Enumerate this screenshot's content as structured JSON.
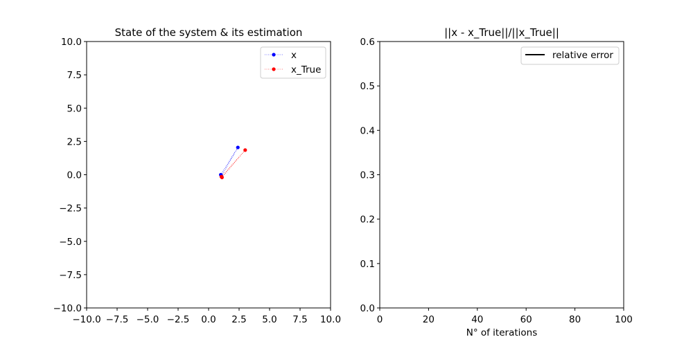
{
  "chart_data": [
    {
      "type": "line",
      "title": "State of the system & its estimation",
      "xlabel": "",
      "ylabel": "",
      "xlim": [
        -10,
        10
      ],
      "ylim": [
        -10,
        10
      ],
      "xticks": [
        -10,
        -7.5,
        -5,
        -2.5,
        0,
        2.5,
        5,
        7.5,
        10
      ],
      "yticks": [
        -10,
        -7.5,
        -5,
        -2.5,
        0,
        2.5,
        5,
        7.5,
        10
      ],
      "xtick_labels": [
        "−10.0",
        "−7.5",
        "−5.0",
        "−2.5",
        "0.0",
        "2.5",
        "5.0",
        "7.5",
        "10.0"
      ],
      "ytick_labels": [
        "−10.0",
        "−7.5",
        "−5.0",
        "−2.5",
        "0.0",
        "2.5",
        "5.0",
        "7.5",
        "10.0"
      ],
      "grid": false,
      "legend_position": "top-right",
      "series": [
        {
          "name": "x",
          "color": "#0000ff",
          "linestyle": "dotted",
          "marker": "circle",
          "points": [
            [
              1.0,
              0.0
            ],
            [
              2.4,
              2.05
            ],
            [
              1.05,
              -0.1
            ]
          ]
        },
        {
          "name": "x_True",
          "color": "#ff0000",
          "linestyle": "dotted",
          "marker": "circle",
          "points": [
            [
              1.05,
              -0.15
            ],
            [
              3.0,
              1.85
            ],
            [
              1.1,
              -0.2
            ]
          ]
        }
      ]
    },
    {
      "type": "line",
      "title": "||x - x_True||/||x_True||",
      "xlabel": "N° of iterations",
      "ylabel": "",
      "xlim": [
        0,
        100
      ],
      "ylim": [
        0,
        0.6
      ],
      "xticks": [
        0,
        20,
        40,
        60,
        80,
        100
      ],
      "yticks": [
        0,
        0.1,
        0.2,
        0.3,
        0.4,
        0.5,
        0.6
      ],
      "xtick_labels": [
        "0",
        "20",
        "40",
        "60",
        "80",
        "100"
      ],
      "ytick_labels": [
        "0.0",
        "0.1",
        "0.2",
        "0.3",
        "0.4",
        "0.5",
        "0.6"
      ],
      "grid": false,
      "legend_position": "top-right",
      "series": [
        {
          "name": "relative error",
          "color": "#000000",
          "linestyle": "solid",
          "marker": "none",
          "points": []
        }
      ]
    }
  ]
}
